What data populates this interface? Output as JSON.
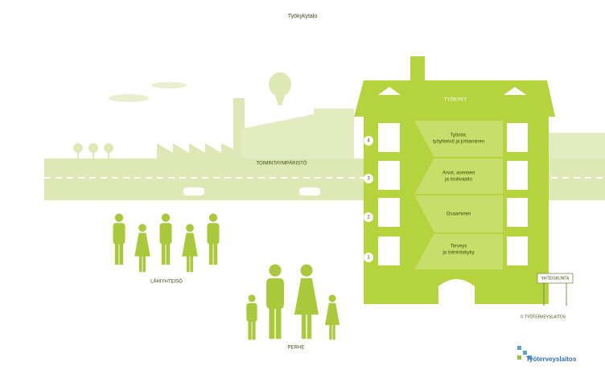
{
  "title": "Työkykytalo",
  "building": {
    "roof": "TYÖKYKY",
    "floors": [
      {
        "number": "4",
        "lines": [
          "Työolot,",
          "työyhteisö ja johtaminen"
        ]
      },
      {
        "number": "3",
        "lines": [
          "Arvot, asenteet",
          "ja motivaatio"
        ]
      },
      {
        "number": "2",
        "lines": [
          "Osaaminen"
        ]
      },
      {
        "number": "1",
        "lines": [
          "Terveys",
          "ja toimintakyky"
        ]
      }
    ]
  },
  "labels": {
    "environment": "TOIMINTAYMPÄRISTÖ",
    "community": "LÄHIYHTEISÖ",
    "family": "PERHE",
    "society": "YHTEISKUNTA",
    "copyright": "© TYÖTERVEYSLAITOS"
  },
  "logo": "Työterveyslaitos"
}
